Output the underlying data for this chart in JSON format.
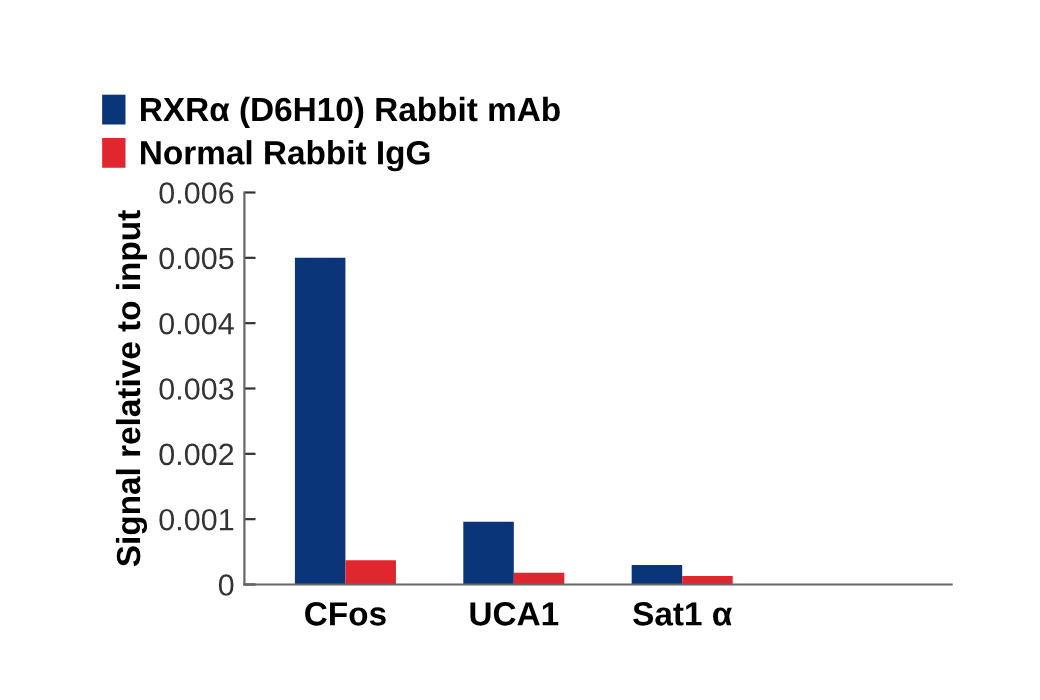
{
  "chart_data": {
    "type": "bar",
    "ylabel": "Signal relative to input",
    "categories": [
      "CFos",
      "UCA1",
      "Sat1 α",
      null
    ],
    "series": [
      {
        "name": "RXRα (D6H10) Rabbit mAb",
        "color": "#0b3579",
        "values": [
          0.005,
          0.00096,
          0.0003,
          null
        ]
      },
      {
        "name": "Normal Rabbit IgG",
        "color": "#e0262e",
        "values": [
          0.00037,
          0.00018,
          0.00013,
          null
        ]
      }
    ],
    "ylim": [
      0,
      0.006
    ],
    "yticks": [
      0,
      0.001,
      0.002,
      0.003,
      0.004,
      0.005,
      0.006
    ],
    "grid": false,
    "legend": "top left"
  }
}
